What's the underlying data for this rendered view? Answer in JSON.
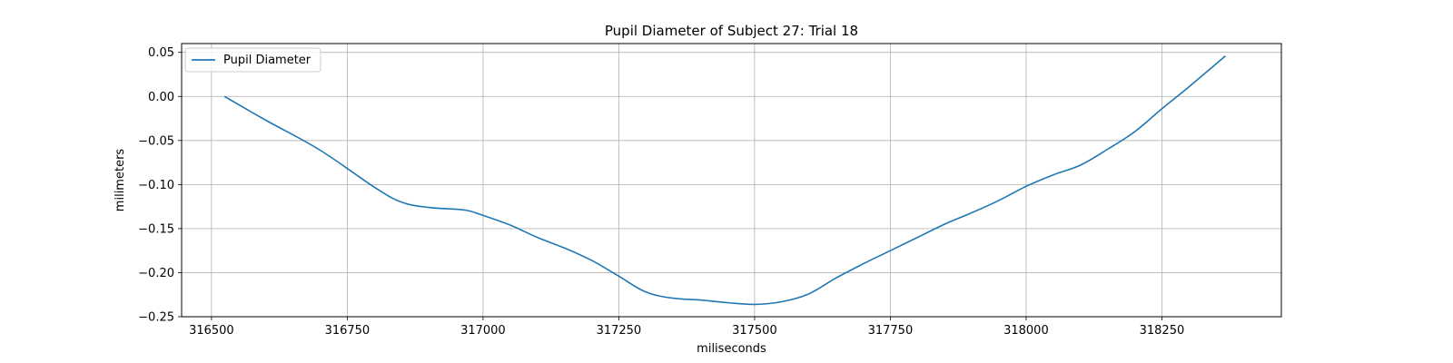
{
  "chart_data": {
    "type": "line",
    "title": "Pupil Diameter of Subject 27: Trial 18",
    "xlabel": "miliseconds",
    "ylabel": "milimeters",
    "xlim": [
      316445,
      318470
    ],
    "ylim": [
      -0.25,
      0.06
    ],
    "xticks": [
      316500,
      316750,
      317000,
      317250,
      317500,
      317750,
      318000,
      318250
    ],
    "xtick_labels": [
      "316500",
      "316750",
      "317000",
      "317250",
      "317500",
      "317750",
      "318000",
      "318250"
    ],
    "yticks": [
      0.05,
      0.0,
      -0.05,
      -0.1,
      -0.15,
      -0.2,
      -0.25
    ],
    "ytick_labels": [
      "0.05",
      "0.00",
      "−0.05",
      "−0.10",
      "−0.15",
      "−0.20",
      "−0.25"
    ],
    "grid": true,
    "legend_position": "top-left",
    "colors": {
      "line": "#1f77b4",
      "grid": "#b0b0b0",
      "axes": "#000000"
    },
    "series": [
      {
        "name": "Pupil Diameter",
        "x": [
          316524,
          316600,
          316700,
          316800,
          316850,
          316900,
          316967,
          317000,
          317050,
          317100,
          317150,
          317200,
          317250,
          317300,
          317350,
          317400,
          317450,
          317500,
          317550,
          317600,
          317650,
          317700,
          317750,
          317800,
          317850,
          317900,
          317950,
          318000,
          318050,
          318100,
          318150,
          318200,
          318250,
          318300,
          318367
        ],
        "y": [
          0.0,
          -0.027,
          -0.061,
          -0.103,
          -0.12,
          -0.126,
          -0.129,
          -0.135,
          -0.146,
          -0.16,
          -0.172,
          -0.186,
          -0.204,
          -0.222,
          -0.229,
          -0.231,
          -0.234,
          -0.236,
          -0.233,
          -0.224,
          -0.206,
          -0.19,
          -0.175,
          -0.16,
          -0.145,
          -0.132,
          -0.118,
          -0.102,
          -0.089,
          -0.078,
          -0.06,
          -0.04,
          -0.014,
          0.011,
          0.046
        ]
      }
    ]
  }
}
